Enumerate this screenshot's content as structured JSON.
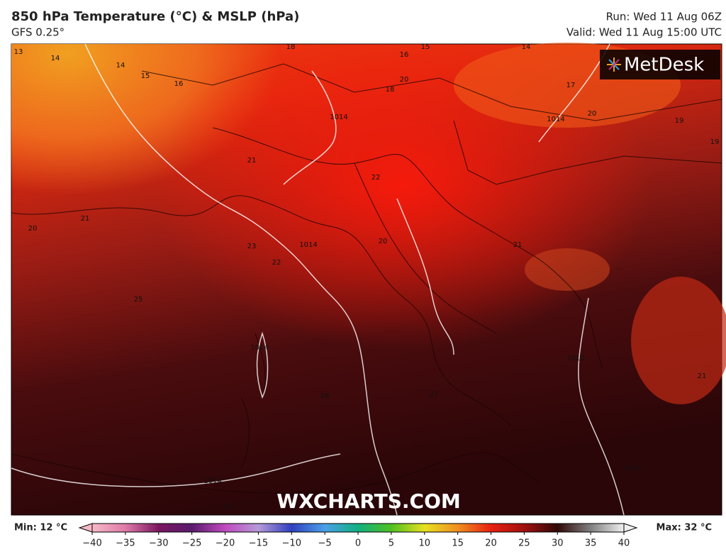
{
  "header": {
    "title": "850 hPa Temperature (°C) & MSLP (hPa)",
    "subtitle": "GFS 0.25°",
    "run": "Run: Wed 11 Aug 06Z",
    "valid": "Valid: Wed 11 Aug 15:00 UTC"
  },
  "map": {
    "logo": "MetDesk",
    "watermark": "WXCHARTS.COM",
    "contour_labels": [
      "13",
      "14",
      "14",
      "15",
      "16",
      "18",
      "16",
      "15",
      "14",
      "20",
      "18",
      "17",
      "20",
      "19",
      "19",
      "1014",
      "1014",
      "21",
      "22",
      "21",
      "20",
      "23",
      "1014",
      "20",
      "22",
      "21",
      "25",
      "1014",
      "28",
      "27",
      "1010",
      "21",
      "1014",
      "31",
      "1014"
    ]
  },
  "colorbar": {
    "min_label": "Min: 12 °C",
    "max_label": "Max: 32 °C",
    "range": [
      -40,
      40
    ],
    "ticks": [
      {
        "value": -40,
        "label": "−40"
      },
      {
        "value": -35,
        "label": "−35"
      },
      {
        "value": -30,
        "label": "−30"
      },
      {
        "value": -25,
        "label": "−25"
      },
      {
        "value": -20,
        "label": "−20"
      },
      {
        "value": -15,
        "label": "−15"
      },
      {
        "value": -10,
        "label": "−10"
      },
      {
        "value": -5,
        "label": "−5"
      },
      0,
      5,
      10,
      15,
      20,
      25,
      30,
      35,
      40
    ],
    "colors": [
      "#f6b9c6",
      "#e07aa8",
      "#7a1660",
      "#5a1a6e",
      "#c04ac0",
      "#b59ad8",
      "#3040c0",
      "#4aa0e8",
      "#10b080",
      "#50c020",
      "#e8e020",
      "#f09020",
      "#e82010",
      "#a01010",
      "#300808",
      "#808080",
      "#f0f0f0"
    ]
  }
}
